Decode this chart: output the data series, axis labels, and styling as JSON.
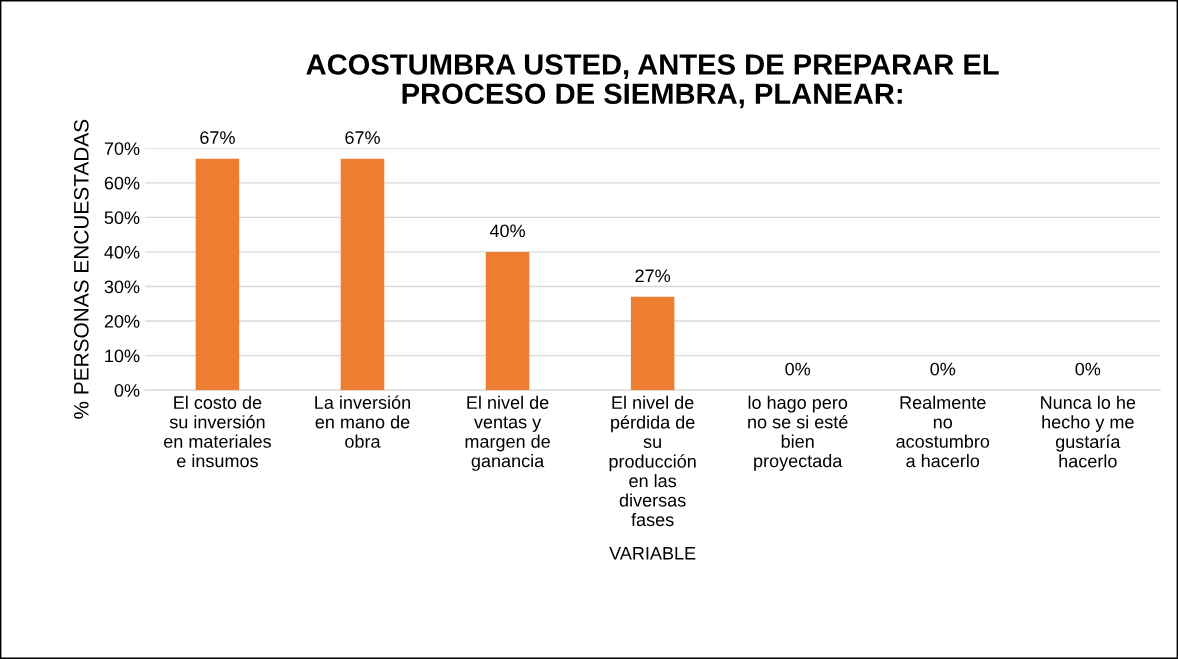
{
  "chart_data": {
    "type": "bar",
    "title": "ACOSTUMBRA USTED, ANTES DE PREPARAR EL\nPROCESO DE SIEMBRA, PLANEAR:",
    "xlabel": "VARIABLE",
    "ylabel": "% PERSONAS ENCUESTADAS",
    "categories": [
      "El costo de\nsu inversión\nen materiales\ne insumos",
      "La inversión\nen mano de\nobra",
      "El nivel de\nventas y\nmargen de\nganancia",
      "El nivel de\npérdida de\nsu\nproducción\nen las\ndiversas\nfases",
      "lo hago pero\nno se si esté\nbien\nproyectada",
      "Realmente\nno\nacostumbro\na hacerlo",
      "Nunca lo he\nhecho y me\ngustaría\nhacerlo"
    ],
    "values": [
      67,
      67,
      40,
      27,
      0,
      0,
      0
    ],
    "value_labels": [
      "67%",
      "67%",
      "40%",
      "27%",
      "0%",
      "0%",
      "0%"
    ],
    "color": "#ed7d31",
    "ylim": [
      0,
      70
    ],
    "yticks": [
      {
        "value": 0,
        "label": "0%"
      },
      {
        "value": 10,
        "label": "10%"
      },
      {
        "value": 20,
        "label": "20%"
      },
      {
        "value": 30,
        "label": "30%"
      },
      {
        "value": 40,
        "label": "40%"
      },
      {
        "value": 50,
        "label": "50%"
      },
      {
        "value": 60,
        "label": "60%"
      },
      {
        "value": 70,
        "label": "70%"
      }
    ],
    "grid": "y",
    "legend": false
  }
}
